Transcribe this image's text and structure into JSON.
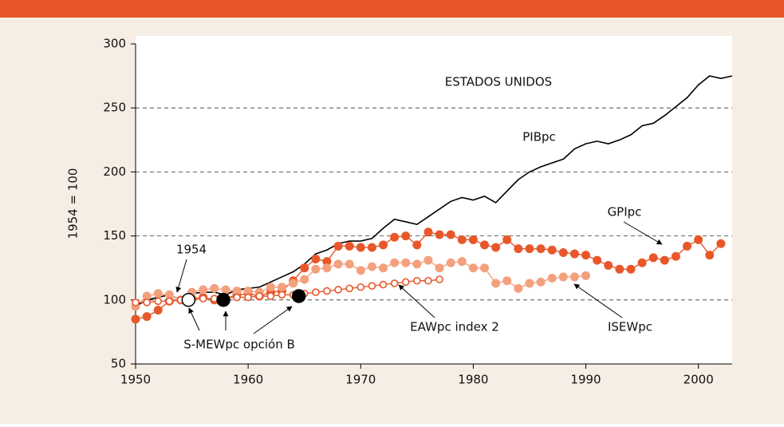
{
  "chart_data": {
    "type": "line",
    "subtitle": "ESTADOS UNIDOS",
    "annotations": [
      "1954"
    ],
    "y_label": "1954 = 100",
    "x": [
      1950,
      1951,
      1952,
      1953,
      1954,
      1955,
      1956,
      1957,
      1958,
      1959,
      1960,
      1961,
      1962,
      1963,
      1964,
      1965,
      1966,
      1967,
      1968,
      1969,
      1970,
      1971,
      1972,
      1973,
      1974,
      1975,
      1976,
      1977,
      1978,
      1979,
      1980,
      1981,
      1982,
      1983,
      1984,
      1985,
      1986,
      1987,
      1988,
      1989,
      1990,
      1991,
      1992,
      1993,
      1994,
      1995,
      1996,
      1997,
      1998,
      1999,
      2000,
      2001,
      2002,
      2003
    ],
    "series": [
      {
        "name": "PIBpc",
        "color": "#000000",
        "marker": "none",
        "values": [
          95,
          100,
          102,
          104,
          100,
          105,
          106,
          106,
          104,
          108,
          109,
          110,
          114,
          118,
          122,
          128,
          136,
          139,
          144,
          146,
          146,
          148,
          156,
          163,
          161,
          159,
          165,
          171,
          177,
          180,
          178,
          181,
          176,
          185,
          194,
          200,
          204,
          207,
          210,
          218,
          222,
          224,
          222,
          225,
          229,
          236,
          238,
          244,
          251,
          258,
          268,
          275,
          273,
          275
        ]
      },
      {
        "name": "GPIpc",
        "color": "#e8572a",
        "marker": "filled",
        "values": [
          85,
          87,
          92,
          99,
          100,
          101,
          102,
          100,
          101,
          104,
          105,
          103,
          106,
          107,
          115,
          125,
          132,
          130,
          142,
          142,
          141,
          141,
          143,
          149,
          150,
          143,
          153,
          151,
          151,
          147,
          147,
          143,
          141,
          147,
          140,
          140,
          140,
          139,
          137,
          136,
          135,
          131,
          127,
          124,
          124,
          129,
          133,
          131,
          134,
          142,
          147,
          135,
          144,
          null
        ]
      },
      {
        "name": "ISEWpc",
        "color": "#f4a07e",
        "marker": "filled",
        "values": [
          95,
          103,
          105,
          104,
          100,
          106,
          108,
          109,
          108,
          107,
          107,
          106,
          110,
          110,
          113,
          116,
          124,
          125,
          128,
          128,
          123,
          126,
          125,
          129,
          129,
          128,
          131,
          125,
          129,
          130,
          125,
          125,
          113,
          115,
          109,
          113,
          114,
          117,
          118,
          118,
          119,
          null,
          null,
          null,
          null,
          null,
          null,
          null,
          null,
          null,
          null,
          null,
          null,
          null
        ]
      },
      {
        "name": "EAWpc index 2",
        "color": "#e8572a",
        "marker": "open",
        "values": [
          98,
          98,
          99,
          99,
          100,
          100,
          101,
          101,
          102,
          102,
          102,
          103,
          103,
          104,
          104,
          105,
          106,
          107,
          108,
          109,
          110,
          111,
          112,
          113,
          114,
          115,
          115,
          116,
          null,
          null,
          null,
          null,
          null,
          null,
          null,
          null,
          null,
          null,
          null,
          null,
          null,
          null,
          null,
          null,
          null,
          null,
          null,
          null,
          null,
          null,
          null,
          null,
          null,
          null
        ]
      },
      {
        "name": "S-MEWpc opción B",
        "type": "scatter",
        "x": [
          1954.7,
          1957.8,
          1964.5
        ],
        "values": [
          100,
          100,
          103
        ],
        "colors": [
          "#ffffff",
          "#000000",
          "#000000"
        ]
      }
    ],
    "xlim": [
      1950,
      2003
    ],
    "xticks": [
      1950,
      1960,
      1970,
      1980,
      1990,
      2000
    ],
    "ylim": [
      50,
      300
    ],
    "yticks": [
      50,
      100,
      150,
      200,
      250,
      300
    ],
    "grid": true
  }
}
